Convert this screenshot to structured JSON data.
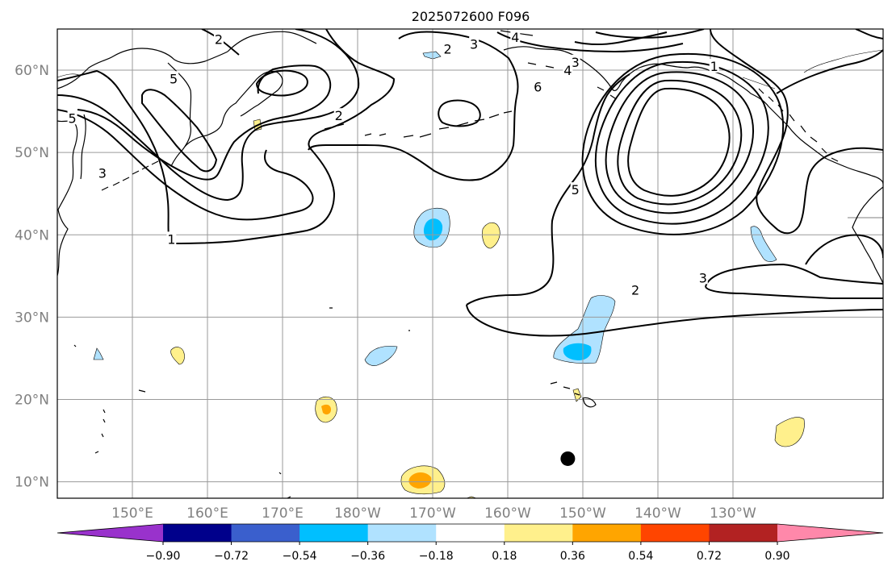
{
  "title": "2025072600 F096",
  "map": {
    "lon_ticks": [
      "150°E",
      "160°E",
      "170°E",
      "180°W",
      "170°W",
      "160°W",
      "150°W",
      "140°W",
      "130°W"
    ],
    "lat_ticks": [
      "60°N",
      "50°N",
      "40°N",
      "30°N",
      "20°N",
      "10°N"
    ],
    "lon_range": [
      140,
      250
    ],
    "lat_range": [
      8,
      65
    ],
    "grid": true,
    "contour_levels_labeled": [
      "1",
      "2",
      "3",
      "4",
      "5",
      "6"
    ],
    "contour_labels": [
      {
        "text": "2",
        "lon": 161.5,
        "lat": 63.8
      },
      {
        "text": "5",
        "lon": 155.5,
        "lat": 59.0
      },
      {
        "text": "5",
        "lon": 142.0,
        "lat": 54.2
      },
      {
        "text": "3",
        "lon": 146.0,
        "lat": 47.5
      },
      {
        "text": "1",
        "lon": 155.2,
        "lat": 39.5
      },
      {
        "text": "2",
        "lon": 177.5,
        "lat": 54.5
      },
      {
        "text": "2",
        "lon": 192.0,
        "lat": 62.6
      },
      {
        "text": "3",
        "lon": 195.5,
        "lat": 63.2
      },
      {
        "text": "4",
        "lon": 201.0,
        "lat": 64.0
      },
      {
        "text": "3",
        "lon": 209.0,
        "lat": 61.0
      },
      {
        "text": "4",
        "lon": 208.0,
        "lat": 60.0
      },
      {
        "text": "6",
        "lon": 204.0,
        "lat": 58.0
      },
      {
        "text": "5",
        "lon": 209.0,
        "lat": 45.5
      },
      {
        "text": "1",
        "lon": 227.5,
        "lat": 60.5
      },
      {
        "text": "2",
        "lon": 217.0,
        "lat": 33.3
      },
      {
        "text": "3",
        "lon": 226.0,
        "lat": 34.8
      }
    ],
    "marker": {
      "shape": "filled-circle",
      "color": "#000000",
      "lon": 208.0,
      "lat": 12.8
    }
  },
  "colorbar": {
    "orientation": "horizontal",
    "extend": "both",
    "tick_labels": [
      "−0.90",
      "−0.72",
      "−0.54",
      "−0.36",
      "−0.18",
      "0.18",
      "0.36",
      "0.54",
      "0.72",
      "0.90"
    ],
    "colors": [
      "#9932cc",
      "#00008b",
      "#3a5fcd",
      "#00bfff",
      "#b0e2ff",
      "#ffffff",
      "#fff08c",
      "#ffa500",
      "#ff4500",
      "#b22222",
      "#ff88aa"
    ]
  }
}
